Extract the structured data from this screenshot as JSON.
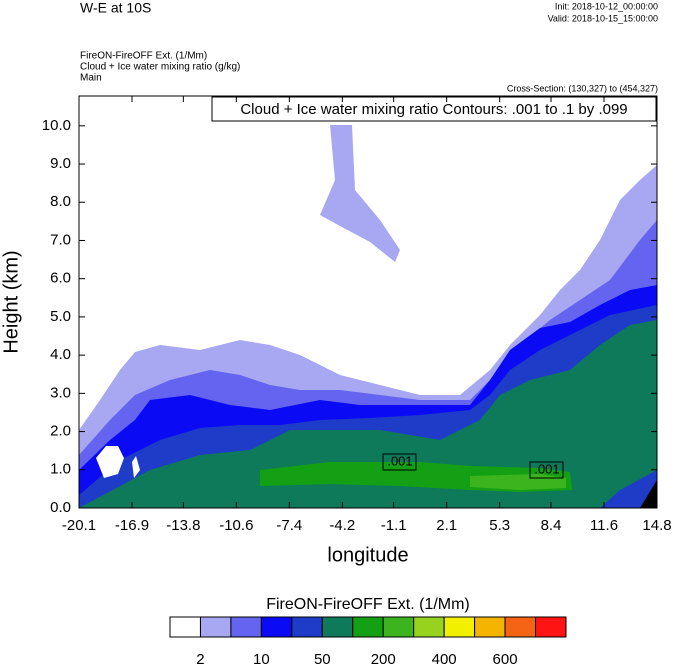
{
  "chart_data": {
    "type": "contour",
    "title": "W-E at 10S",
    "init": "Init: 2018-10-12_00:00:00",
    "valid": "Valid: 2018-10-15_15:00:00",
    "fields": [
      "FireON-FireOFF Ext.   (1/Mm)",
      "Cloud + Ice water mixing ratio   (g/kg)",
      "Main"
    ],
    "cross_section": "Cross-Section: (130,327) to (454,327)",
    "contour_note": "Cloud + Ice water mixing ratio Contours: .001 to .1 by .099",
    "contour_labels": [
      ".001",
      ".001"
    ],
    "x_label": "longitude",
    "y_label": "Height (km)",
    "xlim": [
      -20.1,
      14.8
    ],
    "xticks": [
      -20.1,
      -16.9,
      -13.8,
      -10.6,
      -7.4,
      -4.2,
      -1.1,
      2.1,
      5.3,
      8.4,
      11.6,
      14.8
    ],
    "ylim": [
      0,
      10.78
    ],
    "yticks": [
      {
        "value": 0,
        "label": "0.0"
      },
      {
        "value": 1,
        "label": "1.0"
      },
      {
        "value": 2,
        "label": "2.0"
      },
      {
        "value": 3,
        "label": "3.0"
      },
      {
        "value": 4,
        "label": "4.0"
      },
      {
        "value": 5,
        "label": "5.0"
      },
      {
        "value": 6,
        "label": "6.0"
      },
      {
        "value": 7,
        "label": "7.0"
      },
      {
        "value": 8,
        "label": "8.0"
      },
      {
        "value": 9,
        "label": "9.0"
      },
      {
        "value": 10,
        "label": "10.0"
      }
    ],
    "colorbar": {
      "title": "FireON-FireOFF Ext.  (1/Mm)",
      "colors": [
        "#ffffff",
        "#a7a7f2",
        "#6464f0",
        "#0a0af5",
        "#1e3cc8",
        "#0f7a5a",
        "#14a014",
        "#3cb41e",
        "#96d21e",
        "#f0f000",
        "#f5b400",
        "#f56414",
        "#ff1414"
      ],
      "boundaries": [
        2,
        null,
        10,
        null,
        50,
        null,
        200,
        null,
        400,
        null,
        600,
        null
      ]
    }
  }
}
